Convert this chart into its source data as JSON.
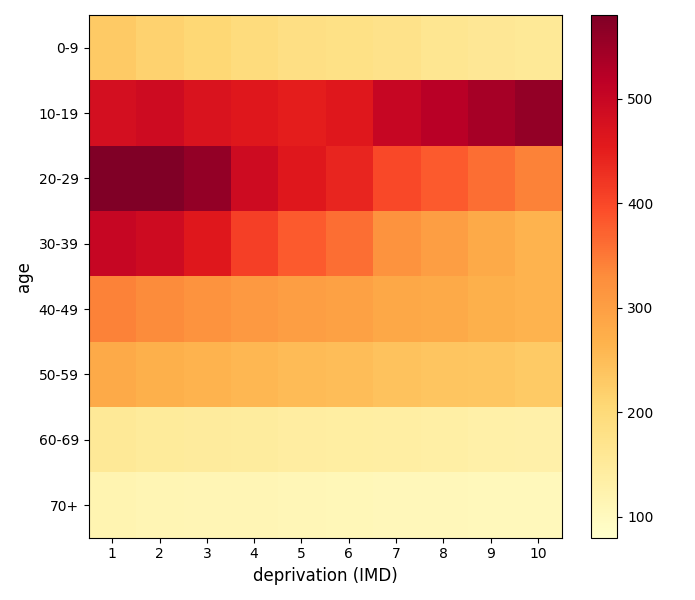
{
  "age_groups": [
    "0-9",
    "10-19",
    "20-29",
    "30-39",
    "40-49",
    "50-59",
    "60-69",
    "70+"
  ],
  "deprivation_levels": [
    1,
    2,
    3,
    4,
    5,
    6,
    7,
    8,
    9,
    10
  ],
  "data": [
    [
      230,
      215,
      205,
      195,
      185,
      180,
      175,
      165,
      160,
      155
    ],
    [
      480,
      490,
      470,
      460,
      450,
      460,
      500,
      520,
      540,
      560
    ],
    [
      590,
      600,
      560,
      490,
      460,
      440,
      400,
      380,
      360,
      340
    ],
    [
      500,
      490,
      460,
      410,
      380,
      360,
      320,
      300,
      280,
      265
    ],
    [
      340,
      330,
      320,
      310,
      300,
      295,
      285,
      280,
      270,
      265
    ],
    [
      280,
      270,
      265,
      258,
      252,
      248,
      242,
      238,
      235,
      230
    ],
    [
      155,
      150,
      148,
      145,
      142,
      140,
      138,
      135,
      132,
      130
    ],
    [
      118,
      115,
      113,
      112,
      110,
      108,
      107,
      106,
      105,
      104
    ]
  ],
  "xlabel": "deprivation (IMD)",
  "ylabel": "age",
  "colormap": "YlOrRd",
  "vmin": 80,
  "vmax": 580,
  "colorbar_ticks": [
    100,
    200,
    300,
    400,
    500
  ],
  "figsize": [
    6.95,
    6.0
  ],
  "dpi": 100
}
